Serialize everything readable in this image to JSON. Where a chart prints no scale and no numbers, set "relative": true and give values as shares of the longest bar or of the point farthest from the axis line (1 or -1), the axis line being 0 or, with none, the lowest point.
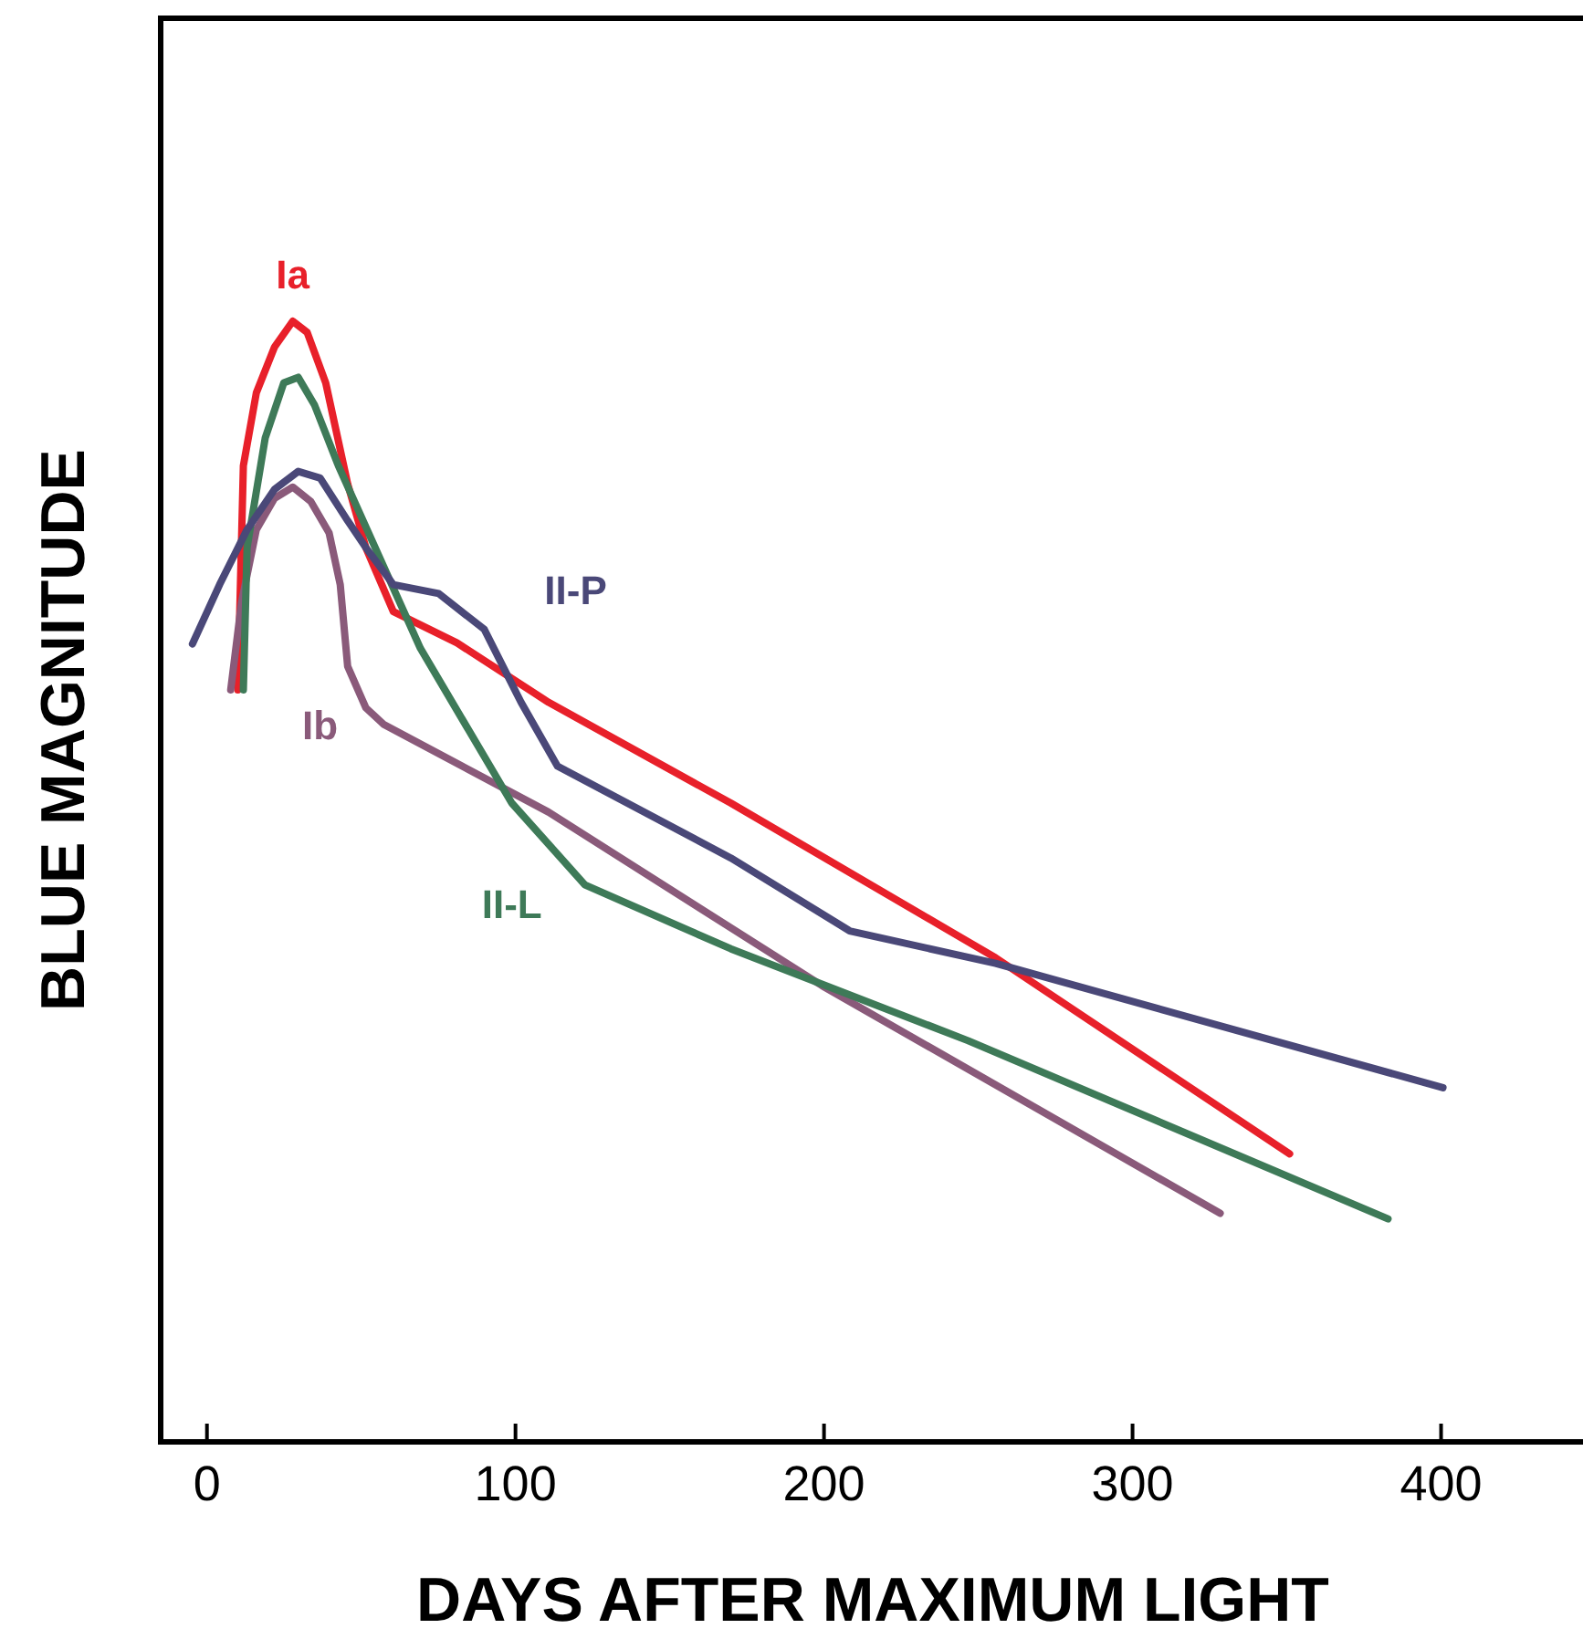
{
  "chart_data": {
    "type": "line",
    "relative": true,
    "xlabel": "DAYS AFTER MAXIMUM LIGHT",
    "ylabel": "BLUE MAGNITUDE",
    "xlim": [
      -15,
      446
    ],
    "xticks": [
      0,
      100,
      200,
      300,
      400
    ],
    "grid": false,
    "marker": "none",
    "line_style": "solid",
    "series": [
      {
        "name": "Ia",
        "color": "#e8202a",
        "x": [
          10,
          11.8,
          16,
          21.9,
          27.8,
          32.5,
          38.5,
          45.6,
          51.5,
          60.4,
          81,
          110.7,
          169.8,
          255.6,
          350.9
        ],
        "values": [
          0.671,
          0.871,
          0.936,
          0.977,
          1.0,
          0.99,
          0.945,
          0.855,
          0.798,
          0.741,
          0.713,
          0.66,
          0.57,
          0.432,
          0.257
        ]
      },
      {
        "name": "Ib",
        "color": "#8a5a7a",
        "x": [
          7.7,
          11.2,
          16,
          21.9,
          27.8,
          33.7,
          39.6,
          43.2,
          45.6,
          51.5,
          57.4,
          110.7,
          199.4,
          328.4
        ],
        "values": [
          0.671,
          0.749,
          0.814,
          0.842,
          0.852,
          0.839,
          0.811,
          0.765,
          0.692,
          0.655,
          0.64,
          0.562,
          0.407,
          0.204
        ]
      },
      {
        "name": "II-L",
        "color": "#3e7a58",
        "x": [
          11.8,
          13,
          18.9,
          24.9,
          29.6,
          34.9,
          42.6,
          69.2,
          98.8,
          122.5,
          169.8,
          246.7,
          382.8
        ],
        "values": [
          0.671,
          0.798,
          0.896,
          0.945,
          0.95,
          0.925,
          0.871,
          0.708,
          0.57,
          0.497,
          0.44,
          0.358,
          0.199
        ]
      },
      {
        "name": "II-P",
        "color": "#4a4878",
        "x": [
          -4.7,
          4.1,
          13,
          21.9,
          29.6,
          36.7,
          45.6,
          51.5,
          60.4,
          75.1,
          89.9,
          101.8,
          113.6,
          169.8,
          208.3,
          255.6,
          400.6
        ],
        "values": [
          0.712,
          0.765,
          0.814,
          0.85,
          0.866,
          0.86,
          0.822,
          0.798,
          0.765,
          0.757,
          0.725,
          0.66,
          0.603,
          0.521,
          0.456,
          0.427,
          0.316
        ]
      }
    ]
  }
}
